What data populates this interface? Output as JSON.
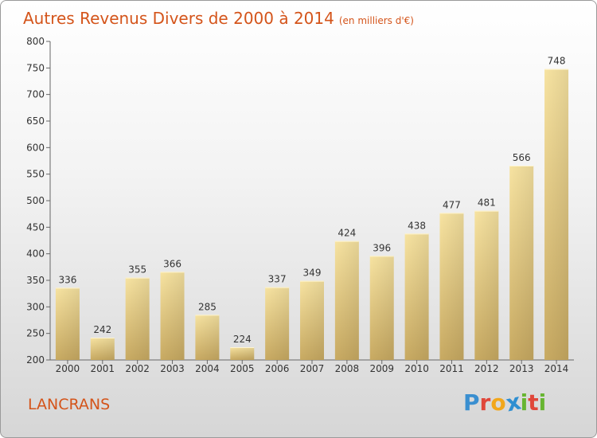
{
  "chart_data": {
    "type": "bar",
    "title": "Autres Revenus Divers de 2000 à 2014",
    "subtitle": "(en milliers d'€)",
    "categories": [
      "2000",
      "2001",
      "2002",
      "2003",
      "2004",
      "2005",
      "2006",
      "2007",
      "2008",
      "2009",
      "2010",
      "2011",
      "2012",
      "2013",
      "2014"
    ],
    "values": [
      336,
      242,
      355,
      366,
      285,
      224,
      337,
      349,
      424,
      396,
      438,
      477,
      481,
      566,
      748
    ],
    "ylim": [
      200,
      800
    ],
    "yticks": [
      200,
      250,
      300,
      350,
      400,
      450,
      500,
      550,
      600,
      650,
      700,
      750,
      800
    ],
    "grid": false,
    "bar_color": "#e8cc84"
  },
  "footer": {
    "commune": "LANCRANS",
    "logo_letters": [
      "P",
      "r",
      "o",
      "x",
      "i",
      "t",
      "i"
    ],
    "logo_colors": [
      "#3a8fd0",
      "#e0463a",
      "#f2a71b",
      "#2f8fd1",
      "#67b531",
      "#e0463a",
      "#67b531"
    ]
  }
}
